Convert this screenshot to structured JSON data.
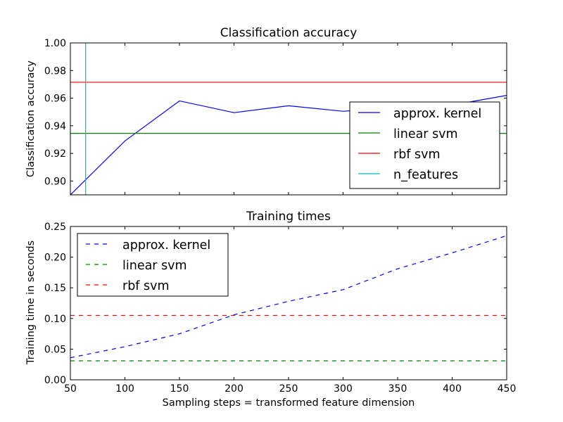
{
  "chart_data": [
    {
      "type": "line",
      "title": "Classification accuracy",
      "xlabel": "",
      "ylabel": "Classification accuracy",
      "xlim": [
        50,
        450
      ],
      "ylim": [
        0.89,
        1.0
      ],
      "xticks": [
        50,
        100,
        150,
        200,
        250,
        300,
        350,
        400,
        450
      ],
      "yticks": [
        "0.90",
        "0.92",
        "0.94",
        "0.96",
        "0.98",
        "1.00"
      ],
      "yticks_values": [
        0.9,
        0.92,
        0.94,
        0.96,
        0.98,
        1.0
      ],
      "legend_position": "right",
      "series": [
        {
          "name": "approx. kernel",
          "style": "solid",
          "color": "#0000ff",
          "x": [
            50,
            100,
            150,
            200,
            250,
            300,
            350,
            400,
            450
          ],
          "y": [
            0.89,
            0.929,
            0.958,
            0.9495,
            0.9545,
            0.9505,
            0.953,
            0.955,
            0.962
          ]
        },
        {
          "name": "linear svm",
          "style": "solid",
          "color": "#008000",
          "x": [
            50,
            450
          ],
          "y": [
            0.9345,
            0.9345
          ]
        },
        {
          "name": "rbf svm",
          "style": "solid",
          "color": "#ff0000",
          "x": [
            50,
            450
          ],
          "y": [
            0.9715,
            0.9715
          ]
        },
        {
          "name": "n_features",
          "style": "vline",
          "color": "#00bfbf",
          "x_value": 64
        }
      ]
    },
    {
      "type": "line",
      "title": "Training times",
      "xlabel": "Sampling steps = transformed feature dimension",
      "ylabel": "Training time in seconds",
      "xlim": [
        50,
        450
      ],
      "ylim": [
        0,
        0.25
      ],
      "xticks": [
        50,
        100,
        150,
        200,
        250,
        300,
        350,
        400,
        450
      ],
      "yticks": [
        "0.00",
        "0.05",
        "0.10",
        "0.15",
        "0.20",
        "0.25"
      ],
      "yticks_values": [
        0,
        0.05,
        0.1,
        0.15,
        0.2,
        0.25
      ],
      "legend_position": "upper-left",
      "series": [
        {
          "name": "approx. kernel",
          "style": "dashed",
          "color": "#0000ff",
          "x": [
            50,
            100,
            150,
            200,
            250,
            300,
            350,
            400,
            450
          ],
          "y": [
            0.036,
            0.054,
            0.075,
            0.106,
            0.128,
            0.147,
            0.181,
            0.207,
            0.235
          ]
        },
        {
          "name": "linear svm",
          "style": "dashed",
          "color": "#008000",
          "x": [
            50,
            450
          ],
          "y": [
            0.031,
            0.031
          ]
        },
        {
          "name": "rbf svm",
          "style": "dashed",
          "color": "#ff0000",
          "x": [
            50,
            450
          ],
          "y": [
            0.105,
            0.105
          ]
        }
      ]
    }
  ]
}
